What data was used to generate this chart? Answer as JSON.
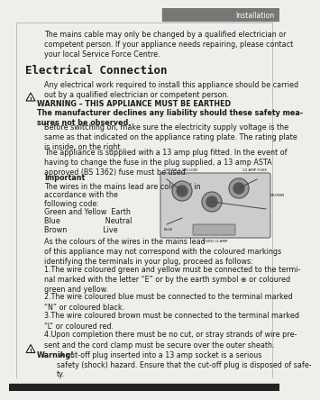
{
  "page_header": "Installation",
  "bg_color": "#f0eeeb",
  "header_bar_color": "#888888",
  "top_text": "The mains cable may only be changed by a qualified electrician or\ncompetent person. If your appliance needs repairing, please contact\nyour local Service Force Centre.",
  "section_title": "Electrical Connection",
  "para1": "Any electrical work required to install this appliance should be carried\nout by a qualified electrician or competent person.",
  "warning_title": "WARNING – THIS APPLIANCE MUST BE EARTHED",
  "warning_body": "The manufacturer declines any liability should these safety mea-\nsures not be observed.",
  "para2": "Before switching on, make sure the electricity supply voltage is the\nsame as that indicated on the appliance rating plate. The rating plate\nis inside, on the right.",
  "para3": "The appliance is supplied with a 13 amp plug fitted. In the event of\nhaving to change the fuse in the plug supplied, a 13 amp ASTA\napproved (BS 1362) fuse must be used.",
  "important_title": "Important",
  "important_lines": [
    "The wires in the mains lead are coloured in",
    "accordance with the",
    "following code:",
    "Green and Yellow  Earth",
    "Blue                    Neutral",
    "Brown                Live"
  ],
  "as_colours": "As the colours of the wires in the mains lead\nof this appliance may not correspond with the coloured markings\nidentifying the terminals in your plug, proceed as follows:",
  "point1": "1.The wire coloured green and yellow must be connected to the termi-\nnal marked with the letter “E” or by the earth symbol ⊕ or coloured\ngreen and yellow.",
  "point2": "2.The wire coloured blue must be connected to the terminal marked\n“N” or coloured black.",
  "point3": "3.The wire coloured brown must be connected to the terminal marked\n“L” or coloured red.",
  "point4": "4.Upon completion there must be no cut, or stray strands of wire pre-\nsent and the cord clamp must be secure over the outer sheath.",
  "warning2_bold": "Warning!",
  "warning2_body": " A cut-off plug inserted into a 13 amp socket is a serious\nsafety (shock) hazard. Ensure that the cut-off plug is disposed of safe-\nty.",
  "text_color": "#1a1a1a",
  "font_size_body": 5.8,
  "font_size_section": 9.0,
  "font_size_header": 5.5,
  "lm": 0.06,
  "ind": 0.13
}
